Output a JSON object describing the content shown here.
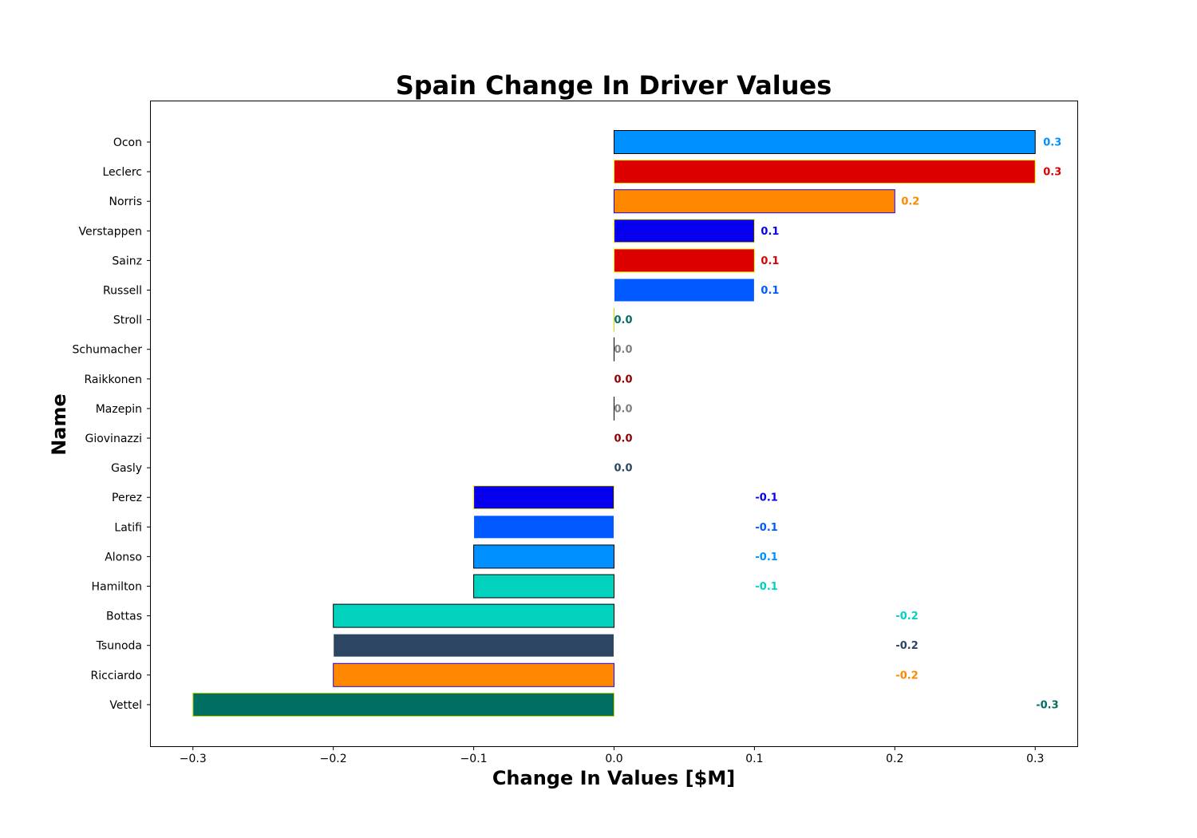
{
  "chart_data": {
    "type": "bar",
    "orientation": "horizontal",
    "title": "Spain Change In Driver Values",
    "xlabel": "Change In Values [$M]",
    "ylabel": "Name",
    "xlim": [
      -0.33,
      0.33
    ],
    "xticks": [
      -0.3,
      -0.2,
      -0.1,
      0.0,
      0.1,
      0.2,
      0.3
    ],
    "xtick_labels": [
      "−0.3",
      "−0.2",
      "−0.1",
      "0.0",
      "0.1",
      "0.2",
      "0.3"
    ],
    "grid": false,
    "categories": [
      "Ocon",
      "Leclerc",
      "Norris",
      "Verstappen",
      "Sainz",
      "Russell",
      "Stroll",
      "Schumacher",
      "Raikkonen",
      "Mazepin",
      "Giovinazzi",
      "Gasly",
      "Perez",
      "Latifi",
      "Alonso",
      "Hamilton",
      "Bottas",
      "Tsunoda",
      "Ricciardo",
      "Vettel"
    ],
    "values": [
      0.3,
      0.3,
      0.2,
      0.1,
      0.1,
      0.1,
      0.0,
      0.0,
      0.0,
      0.0,
      0.0,
      0.0,
      -0.1,
      -0.1,
      -0.1,
      -0.1,
      -0.2,
      -0.2,
      -0.2,
      -0.3
    ],
    "value_labels": [
      "0.3",
      "0.3",
      "0.2",
      "0.1",
      "0.1",
      "0.1",
      "0.0",
      "0.0",
      "0.0",
      "0.0",
      "0.0",
      "0.0",
      "-0.1",
      "-0.1",
      "-0.1",
      "-0.1",
      "-0.2",
      "-0.2",
      "-0.2",
      "-0.3"
    ],
    "fill_colors": [
      "#0090ff",
      "#dc0000",
      "#ff8700",
      "#0600ef",
      "#dc0000",
      "#005aff",
      "#006f62",
      "#ffffff",
      "#900000",
      "#ffffff",
      "#900000",
      "#2b4562",
      "#0600ef",
      "#005aff",
      "#0090ff",
      "#00d2be",
      "#00d2be",
      "#2b4562",
      "#ff8700",
      "#006f62"
    ],
    "edge_colors": [
      "#000000",
      "#fff500",
      "#1e00ff",
      "#fff500",
      "#fff500",
      "#ffffff",
      "#cedc00",
      "#000000",
      "#ffffff",
      "#000000",
      "#ffffff",
      "#ffffff",
      "#fff500",
      "#ffffff",
      "#000000",
      "#000000",
      "#000000",
      "#ffffff",
      "#1e00ff",
      "#cedc00"
    ],
    "label_colors": [
      "#0090ff",
      "#dc0000",
      "#ff8700",
      "#0600ef",
      "#dc0000",
      "#005aff",
      "#006f62",
      "#808080",
      "#900000",
      "#808080",
      "#900000",
      "#2b4562",
      "#0600ef",
      "#005aff",
      "#0090ff",
      "#00d2be",
      "#00d2be",
      "#2b4562",
      "#ff8700",
      "#006f62"
    ]
  }
}
